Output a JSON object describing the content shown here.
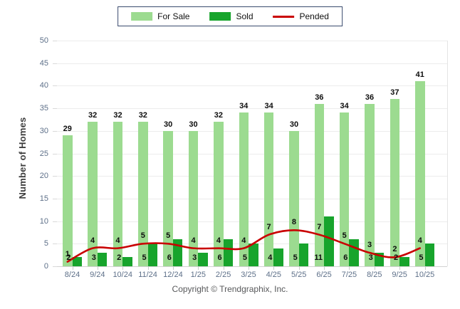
{
  "legend_border_color": "#394a6d",
  "footer": {
    "copyright": "Copyright © Trendgraphix, Inc."
  },
  "chart_data": {
    "type": "bar",
    "title": "",
    "xlabel": "",
    "ylabel": "Number of Homes",
    "ylim": [
      0,
      50
    ],
    "ytick_step": 5,
    "yticks": [
      0,
      5,
      10,
      15,
      20,
      25,
      30,
      35,
      40,
      45,
      50
    ],
    "grid": true,
    "legend_position": "top-center",
    "value_labels": true,
    "categories": [
      "8/24",
      "9/24",
      "10/24",
      "11/24",
      "12/24",
      "1/25",
      "2/25",
      "3/25",
      "4/25",
      "5/25",
      "6/25",
      "7/25",
      "8/25",
      "9/25",
      "10/25"
    ],
    "series": [
      {
        "name": "For Sale",
        "type": "bar",
        "color": "#9cdb90",
        "values": [
          29,
          32,
          32,
          32,
          30,
          30,
          32,
          34,
          34,
          30,
          36,
          34,
          36,
          37,
          41
        ]
      },
      {
        "name": "Sold",
        "type": "bar",
        "color": "#17a42c",
        "values": [
          2,
          3,
          2,
          5,
          6,
          3,
          6,
          5,
          4,
          5,
          11,
          6,
          3,
          2,
          5
        ]
      },
      {
        "name": "Pended",
        "type": "line",
        "color": "#c90000",
        "values": [
          1,
          4,
          4,
          5,
          5,
          4,
          4,
          4,
          7,
          8,
          7,
          5,
          3,
          2,
          4
        ]
      }
    ]
  }
}
